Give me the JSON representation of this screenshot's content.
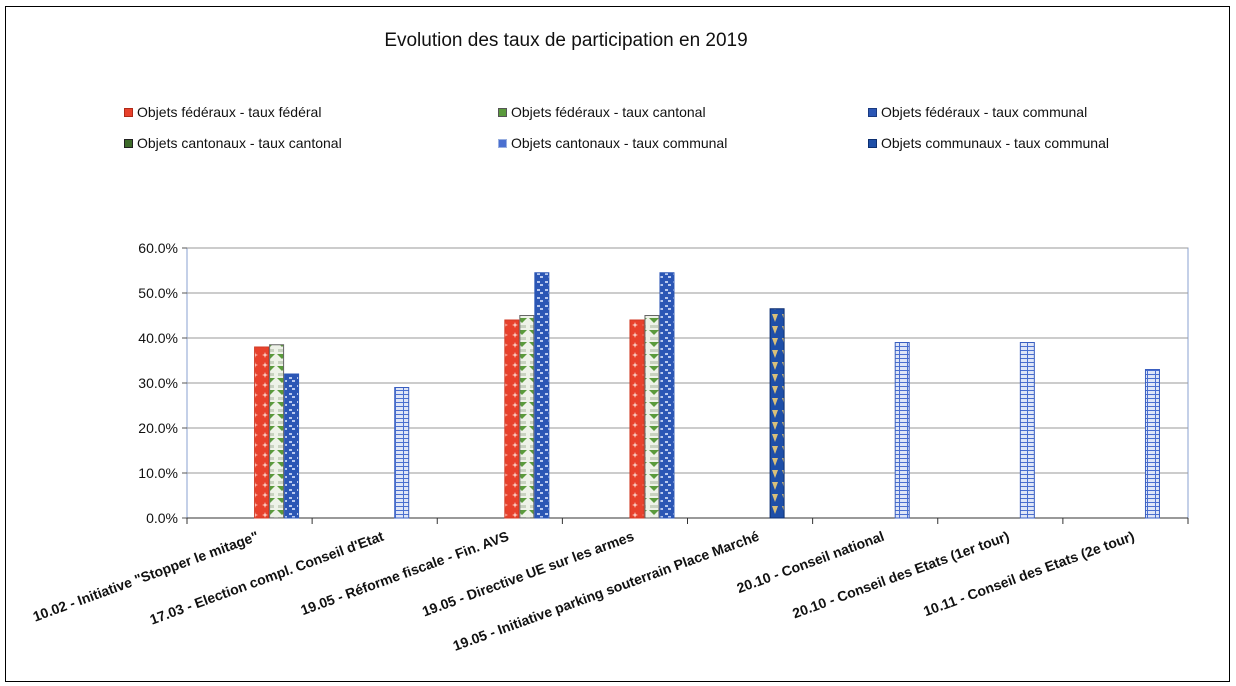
{
  "chart_data": {
    "type": "bar",
    "title": "Evolution des taux de participation en 2019",
    "xlabel": "",
    "ylabel": "",
    "ylim": [
      0,
      0.6
    ],
    "y_ticks": [
      "0.0%",
      "10.0%",
      "20.0%",
      "30.0%",
      "40.0%",
      "50.0%",
      "60.0%"
    ],
    "grid": true,
    "legend_position": "top",
    "categories": [
      "10.02 - Initiative \"Stopper le mitage\"",
      "17.03 - Election compl. Conseil d'Etat",
      "19.05 - Réforme fiscale - Fin. AVS",
      "19.05 - Directive UE sur les armes",
      "19.05 - Initiative parking souterrain Place Marché",
      "20.10 - Conseil national",
      "20.10 - Conseil des Etats (1er tour)",
      "10.11 - Conseil des Etats (2e tour)"
    ],
    "series": [
      {
        "name": "Objets fédéraux - taux fédéral",
        "color": "#e8412c",
        "values": [
          0.38,
          null,
          0.44,
          0.44,
          null,
          null,
          null,
          null
        ]
      },
      {
        "name": "Objets fédéraux - taux cantonal",
        "color": "#5a9a3c",
        "values": [
          0.385,
          null,
          0.45,
          0.45,
          null,
          null,
          null,
          null
        ]
      },
      {
        "name": "Objets fédéraux - taux communal",
        "color": "#2b56b5",
        "values": [
          0.32,
          null,
          0.545,
          0.545,
          null,
          null,
          null,
          null
        ]
      },
      {
        "name": "Objets cantonaux - taux cantonal",
        "color": "#3d6b2a",
        "values": [
          null,
          null,
          null,
          null,
          null,
          null,
          null,
          null
        ]
      },
      {
        "name": "Objets cantonaux - taux communal",
        "color": "#4a6fd0",
        "values": [
          null,
          0.29,
          null,
          null,
          null,
          0.39,
          0.39,
          0.33
        ]
      },
      {
        "name": "Objets communaux - taux communal",
        "color": "#1e4fa8",
        "values": [
          null,
          null,
          null,
          null,
          0.465,
          null,
          null,
          null
        ]
      }
    ]
  }
}
